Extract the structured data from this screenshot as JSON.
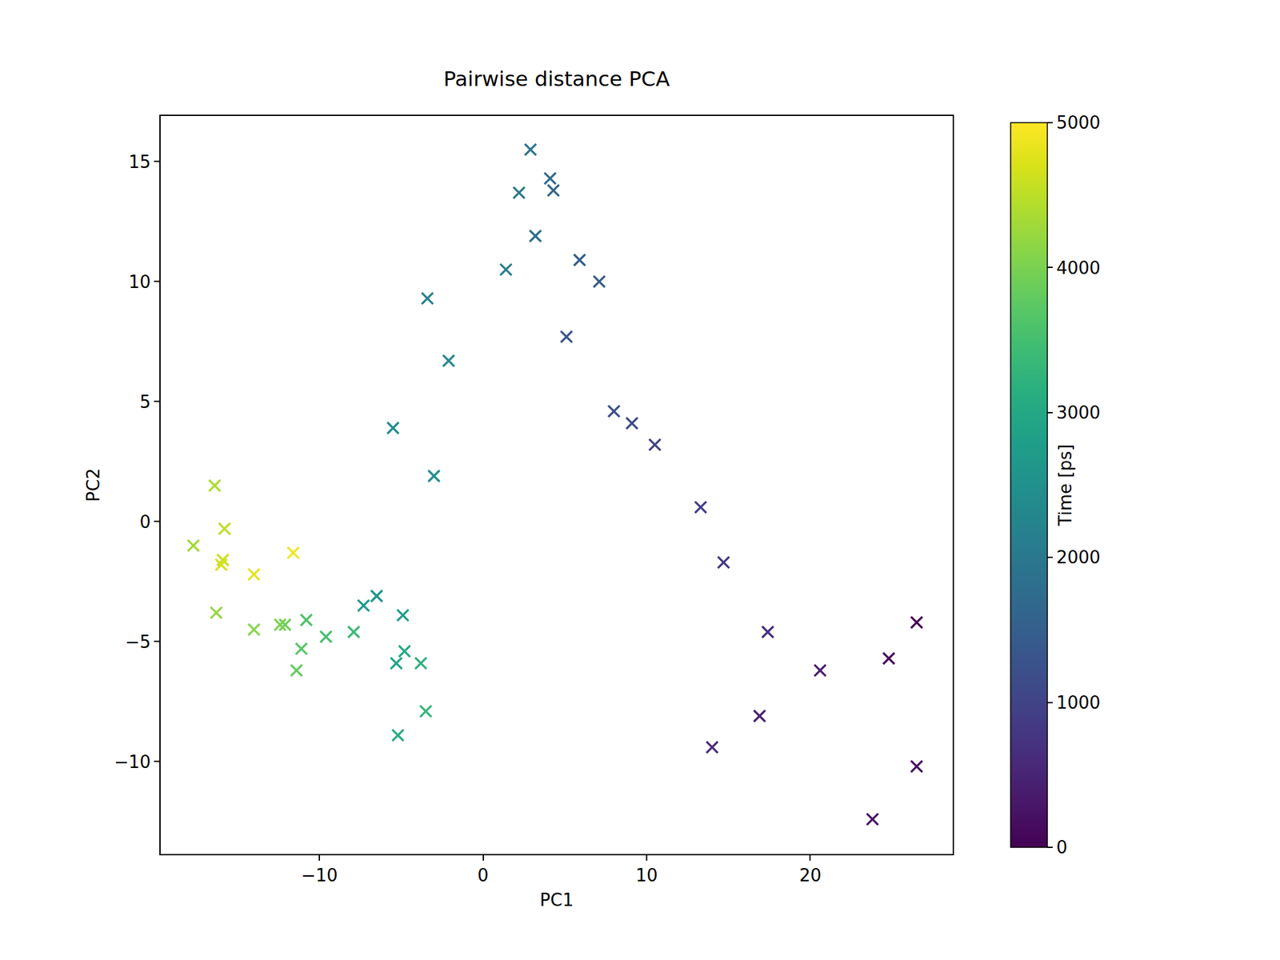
{
  "chart_data": {
    "type": "scatter",
    "title": "Pairwise distance PCA",
    "x_label": "PC1",
    "y_label": "PC2",
    "marker": "x",
    "color": "viridis",
    "x": [
      26.5,
      24.8,
      26.5,
      23.8,
      20.6,
      16.9,
      14.0,
      17.4,
      14.7,
      13.3,
      10.5,
      9.1,
      8.0,
      5.1,
      7.1,
      5.9,
      4.3,
      4.1,
      3.2,
      2.9,
      2.2,
      1.4,
      -3.4,
      -2.1,
      -5.5,
      -3.0,
      -6.5,
      -7.3,
      -4.9,
      -5.3,
      -4.8,
      -5.2,
      -3.8,
      -3.5,
      -7.9,
      -9.6,
      -10.8,
      -11.1,
      -11.4,
      -12.1,
      -12.4,
      -14.0,
      -16.3,
      -17.7,
      -16.4,
      -15.8,
      -15.9,
      -16.0,
      -14.0,
      -11.6
    ],
    "values": [
      -4.2,
      -5.7,
      -10.2,
      -12.4,
      -6.2,
      -8.1,
      -9.4,
      -4.6,
      -1.7,
      0.6,
      3.2,
      4.1,
      4.6,
      7.7,
      10.0,
      10.9,
      13.8,
      14.3,
      11.9,
      15.5,
      13.7,
      10.5,
      9.3,
      6.7,
      3.9,
      1.9,
      -3.1,
      -3.5,
      -3.9,
      -5.9,
      -5.4,
      -8.9,
      -5.9,
      -7.9,
      -4.6,
      -4.8,
      -4.1,
      -5.3,
      -6.2,
      -4.3,
      -4.3,
      -4.5,
      -3.8,
      -1.0,
      1.5,
      -0.3,
      -1.6,
      -1.8,
      -2.2,
      -1.3
    ],
    "time": [
      0,
      100,
      200,
      300,
      400,
      500,
      600,
      700,
      800,
      900,
      1000,
      1100,
      1200,
      1300,
      1400,
      1500,
      1600,
      1700,
      1800,
      1900,
      2000,
      2100,
      2200,
      2300,
      2400,
      2500,
      2600,
      2700,
      2800,
      2900,
      3000,
      3100,
      3200,
      3300,
      3400,
      3500,
      3600,
      3700,
      3800,
      3900,
      4000,
      4100,
      4200,
      4300,
      4400,
      4500,
      4600,
      4700,
      4800,
      4900
    ],
    "colorbar": {
      "title": "Time [ps]",
      "lim": [
        0,
        5000
      ],
      "ticks": [
        0,
        1000,
        2000,
        3000,
        4000,
        5000
      ]
    },
    "xlim": [
      -19.7,
      28.7
    ],
    "xticks": [
      -10,
      0,
      10,
      20
    ],
    "ylim": [
      -13.85,
      16.9
    ],
    "yticks": [
      -10,
      -5,
      0,
      5,
      10,
      15
    ],
    "grid": false
  }
}
